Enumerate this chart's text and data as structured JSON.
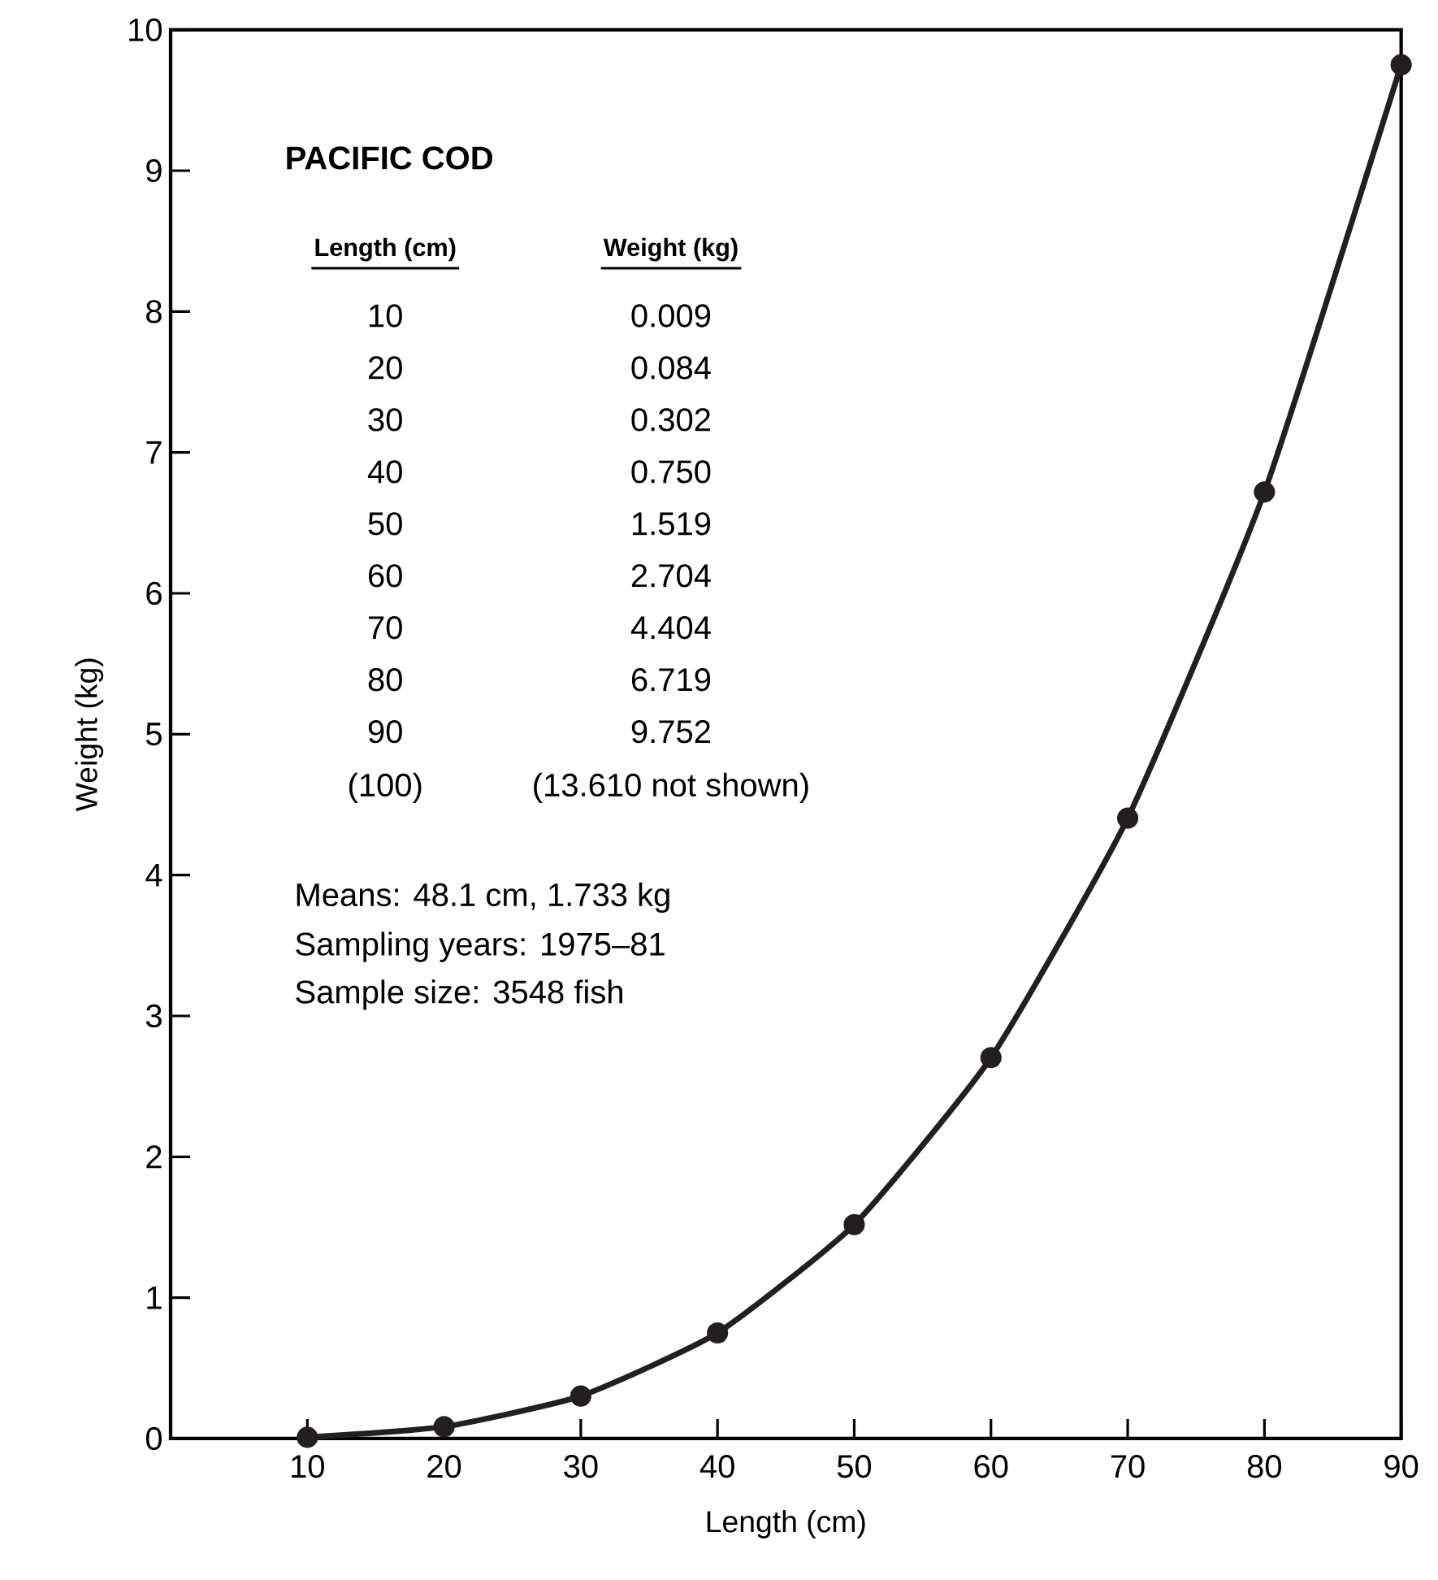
{
  "chart_data": {
    "type": "line",
    "title": "PACIFIC COD",
    "xlabel": "Length (cm)",
    "ylabel": "Weight (kg)",
    "xlim": [
      0,
      90
    ],
    "xticks": [
      10,
      20,
      30,
      40,
      50,
      60,
      70,
      80,
      90
    ],
    "ylim": [
      0,
      10
    ],
    "yticks": [
      0,
      1,
      2,
      3,
      4,
      5,
      6,
      7,
      8,
      9,
      10
    ],
    "grid": false,
    "marker": "circle",
    "line_style": "solid",
    "series": [
      {
        "color": "#231f20",
        "x": [
          10,
          20,
          30,
          40,
          50,
          60,
          70,
          80,
          90
        ],
        "values": [
          0.009,
          0.084,
          0.302,
          0.75,
          1.519,
          2.704,
          4.404,
          6.719,
          9.752
        ]
      }
    ],
    "annotations": [
      "Length (cm)",
      "Weight (kg)",
      "10",
      "0.009",
      "20",
      "0.084",
      "30",
      "0.302",
      "40",
      "0.750",
      "50",
      "1.519",
      "60",
      "2.704",
      "70",
      "4.404",
      "80",
      "6.719",
      "90",
      "9.752",
      "(100)",
      "(13.610 not shown)",
      "Means: 48.1 cm, 1.733 kg",
      "Sampling years: 1975–81",
      "Sample size: 3548 fish"
    ]
  }
}
